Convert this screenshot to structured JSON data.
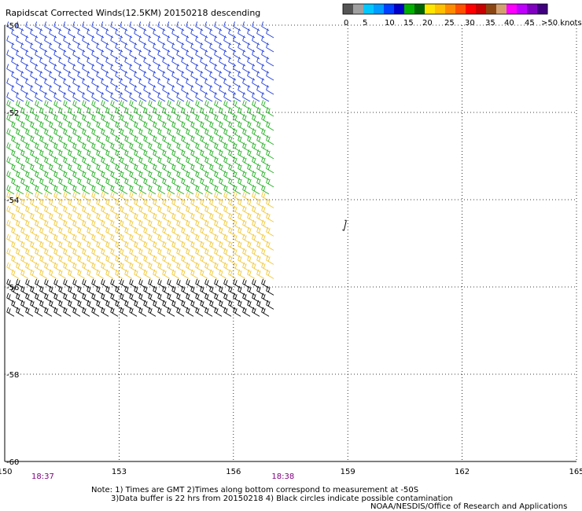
{
  "chart_data": {
    "type": "scatter",
    "title": "Rapidscat Corrected Winds(12.5KM) 20150218 descending",
    "x_ticks": [
      "150",
      "153",
      "156",
      "159",
      "162",
      "165"
    ],
    "y_ticks": [
      "-50",
      "-52",
      "-54",
      "-56",
      "-58",
      "-60"
    ],
    "xlim": [
      150,
      165
    ],
    "ylim": [
      -60,
      -50
    ],
    "grid": true,
    "time_labels": [
      {
        "lon": 151,
        "text": "18:37"
      },
      {
        "lon": 157.3,
        "text": "18:38"
      }
    ],
    "colorbar": {
      "tick_labels": [
        "0",
        "5",
        "10",
        "15",
        "20",
        "25",
        "30",
        "35",
        "40",
        "45",
        ">50 knots"
      ],
      "colors": [
        "#555555",
        "#a0a0a0",
        "#00c8ff",
        "#009cff",
        "#0040ff",
        "#0000c8",
        "#00b000",
        "#006400",
        "#ffe600",
        "#ffc000",
        "#ff8c00",
        "#ff5000",
        "#ff0000",
        "#c80000",
        "#8b4513",
        "#d2a070",
        "#ff00ff",
        "#c000ff",
        "#8000c0",
        "#400080"
      ]
    },
    "swath": {
      "lon_range": [
        150,
        157.1
      ],
      "lat_range": [
        -56.7,
        -50
      ]
    },
    "wind_bands": [
      {
        "lat_from": -50.0,
        "lat_to": -51.8,
        "color": "#1e3cdc",
        "speed_knots": 12
      },
      {
        "lat_from": -51.8,
        "lat_to": -53.9,
        "color": "#22b022",
        "speed_knots": 17
      },
      {
        "lat_from": -53.9,
        "lat_to": -55.9,
        "color": "#f0c838",
        "speed_knots": 24
      },
      {
        "lat_from": -55.9,
        "lat_to": -56.7,
        "color": "#000000",
        "speed_knots": 22
      }
    ],
    "isolated_barb": {
      "lon": 158.9,
      "lat": -54.6
    }
  },
  "notes": {
    "line1": "Note: 1) Times are GMT 2)Times along bottom correspond to measurement at -50S",
    "line2": "3)Data buffer is 22 hrs from 20150218 4) Black circles indicate possible contamination",
    "credit": "NOAA/NESDIS/Office of Research and Applications"
  }
}
